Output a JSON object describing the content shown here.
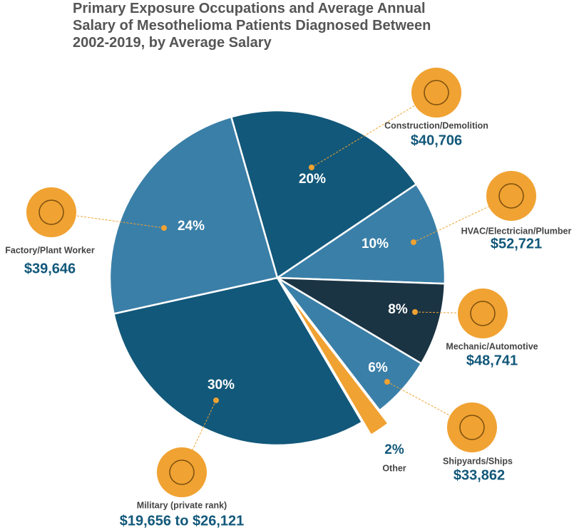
{
  "chart_data": {
    "type": "pie",
    "title": "Primary Exposure Occupations and Average Annual Salary of Mesothelioma Patients Diagnosed Between 2002-2019, by Average Salary",
    "categories": [
      "Construction/Demolition",
      "HVAC/Electrician/Plumber",
      "Mechanic/Automotive",
      "Shipyards/Ships",
      "Other",
      "Military (private rank)",
      "Factory/Plant Worker"
    ],
    "values": [
      20,
      10,
      8,
      6,
      2,
      30,
      24
    ],
    "value_labels": [
      "20%",
      "10%",
      "8%",
      "6%",
      "2%",
      "30%",
      "24%"
    ],
    "salary_labels": [
      "$40,706",
      "$52,721",
      "$48,741",
      "$33,862",
      null,
      "$19,656 to $26,121",
      "$39,646"
    ],
    "colors": [
      "#12587a",
      "#3a7fa8",
      "#1b3444",
      "#3a7fa8",
      "#f0a232",
      "#12587a",
      "#3a7fa8"
    ]
  }
}
